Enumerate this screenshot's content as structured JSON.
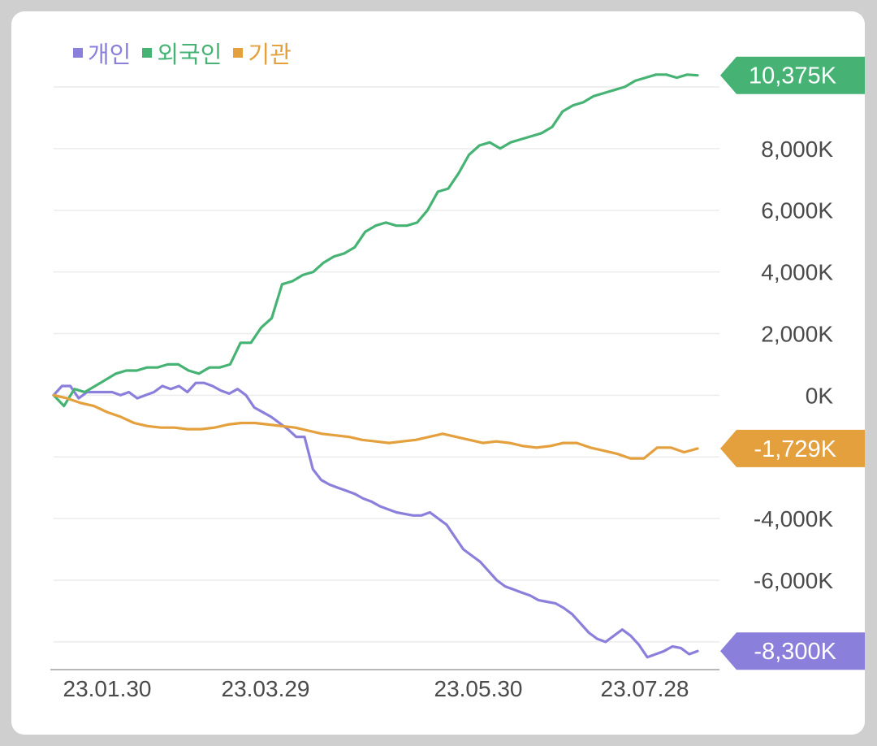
{
  "chart_data": {
    "type": "line",
    "x_ticks": [
      "23.01.30",
      "23.03.29",
      "23.05.30",
      "23.07.28"
    ],
    "y_ticks": [
      {
        "value": 8000,
        "label": "8,000K"
      },
      {
        "value": 6000,
        "label": "6,000K"
      },
      {
        "value": 4000,
        "label": "4,000K"
      },
      {
        "value": 2000,
        "label": "2,000K"
      },
      {
        "value": 0,
        "label": "0K"
      },
      {
        "value": -4000,
        "label": "-4,000K"
      },
      {
        "value": -6000,
        "label": "-6,000K"
      }
    ],
    "ylim": [
      -8900,
      11000
    ],
    "grid": true,
    "legend_position": "top-left",
    "series": [
      {
        "name": "개인",
        "color": "#8b7fdc",
        "end_label": "-8,300K",
        "values": [
          0,
          300,
          300,
          -100,
          100,
          100,
          100,
          100,
          0,
          100,
          -100,
          0,
          100,
          300,
          200,
          300,
          100,
          400,
          400,
          300,
          150,
          50,
          200,
          0,
          -400,
          -550,
          -700,
          -900,
          -1100,
          -1350,
          -1350,
          -2400,
          -2750,
          -2900,
          -3000,
          -3100,
          -3200,
          -3350,
          -3450,
          -3600,
          -3700,
          -3800,
          -3850,
          -3900,
          -3900,
          -3800,
          -4000,
          -4200,
          -4600,
          -5000,
          -5200,
          -5400,
          -5700,
          -6000,
          -6200,
          -6300,
          -6400,
          -6500,
          -6650,
          -6700,
          -6750,
          -6900,
          -7100,
          -7400,
          -7700,
          -7900,
          -8000,
          -7800,
          -7600,
          -7800,
          -8100,
          -8500,
          -8400,
          -8300,
          -8150,
          -8200,
          -8400,
          -8300
        ]
      },
      {
        "name": "외국인",
        "color": "#46b374",
        "end_label": "10,375K",
        "values": [
          0,
          -350,
          200,
          100,
          300,
          500,
          700,
          800,
          800,
          900,
          900,
          1000,
          1000,
          800,
          700,
          900,
          900,
          1000,
          1700,
          1700,
          2200,
          2500,
          3600,
          3700,
          3900,
          4000,
          4300,
          4500,
          4600,
          4800,
          5300,
          5500,
          5600,
          5500,
          5500,
          5600,
          6000,
          6600,
          6700,
          7200,
          7800,
          8100,
          8200,
          8000,
          8200,
          8300,
          8400,
          8500,
          8700,
          9200,
          9400,
          9500,
          9700,
          9800,
          9900,
          10000,
          10200,
          10300,
          10400,
          10400,
          10300,
          10400,
          10375
        ]
      },
      {
        "name": "기관",
        "color": "#e3a03d",
        "end_label": "-1,729K",
        "values": [
          0,
          -100,
          -250,
          -350,
          -550,
          -700,
          -900,
          -1000,
          -1050,
          -1050,
          -1100,
          -1100,
          -1050,
          -950,
          -900,
          -900,
          -950,
          -1000,
          -1050,
          -1150,
          -1250,
          -1300,
          -1350,
          -1450,
          -1500,
          -1550,
          -1500,
          -1450,
          -1350,
          -1250,
          -1350,
          -1450,
          -1550,
          -1500,
          -1550,
          -1650,
          -1700,
          -1650,
          -1550,
          -1550,
          -1700,
          -1800,
          -1900,
          -2050,
          -2050,
          -1700,
          -1700,
          -1850,
          -1729
        ]
      }
    ]
  }
}
